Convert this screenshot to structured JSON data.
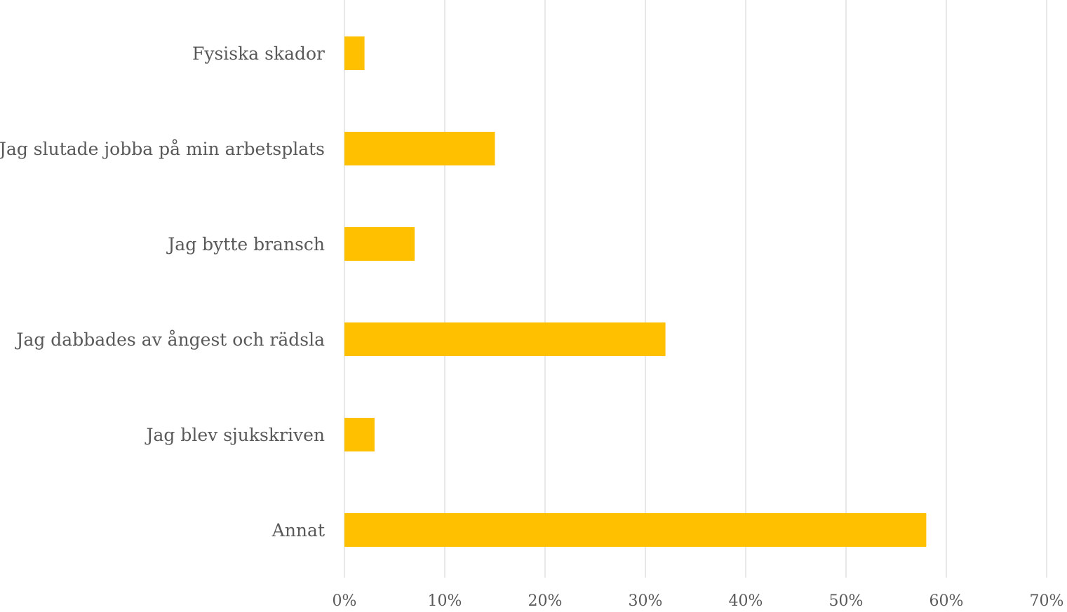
{
  "chart_data": {
    "type": "bar",
    "orientation": "horizontal",
    "title": "",
    "categories": [
      "Fysiska skador",
      "Jag slutade jobba på min arbetsplats",
      "Jag bytte bransch",
      "Jag dabbades av ångest och rädsla",
      "Jag blev sjukskriven",
      "Annat"
    ],
    "values": [
      2,
      15,
      7,
      32,
      3,
      58
    ],
    "value_unit": "%",
    "xlim": [
      0,
      70
    ],
    "x_ticks": [
      0,
      10,
      20,
      30,
      40,
      50,
      60,
      70
    ],
    "x_tick_labels": [
      "0%",
      "10%",
      "20%",
      "30%",
      "40%",
      "50%",
      "60%",
      "70%"
    ],
    "grid": "vertical",
    "legend": "none",
    "bar_color": "#FFC000"
  }
}
